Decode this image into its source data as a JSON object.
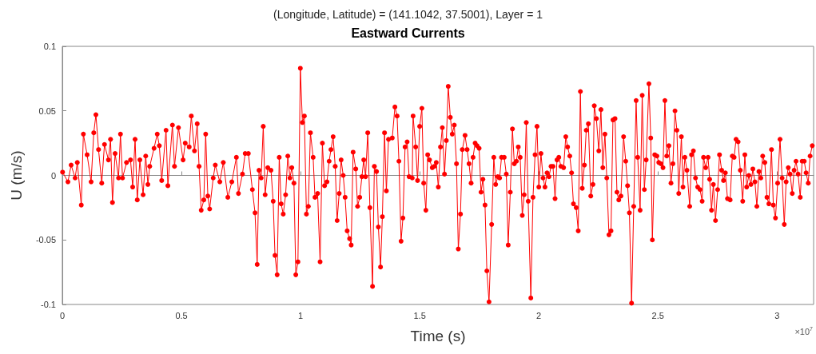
{
  "chart_data": {
    "type": "line",
    "subtitle": "(Longitude, Latitude) = (141.1042, 37.5001), Layer = 1",
    "title": "Eastward Currents",
    "xlabel": "Time (s)",
    "ylabel": "U (m/s)",
    "annotations": [
      "×10$^{7}$"
    ],
    "marker": "circle",
    "line_style": "solid",
    "xlim": [
      0,
      3.1536
    ],
    "xticks": [
      0,
      0.5,
      1,
      1.5,
      2,
      2.5,
      3
    ],
    "ylim": [
      -0.1,
      0.1
    ],
    "yticks": [
      -0.1,
      -0.05,
      0,
      0.05,
      0.1
    ],
    "x": [
      0.001,
      0.0235,
      0.0369,
      0.0537,
      0.0628,
      0.0795,
      0.0883,
      0.104,
      0.1208,
      0.1319,
      0.141,
      0.152,
      0.1654,
      0.1769,
      0.1936,
      0.2024,
      0.2104,
      0.2215,
      0.2359,
      0.244,
      0.2527,
      0.2695,
      0.2863,
      0.2953,
      0.3054,
      0.3145,
      0.3255,
      0.339,
      0.35,
      0.3591,
      0.3668,
      0.3849,
      0.3984,
      0.4071,
      0.4171,
      0.4353,
      0.443,
      0.4621,
      0.4708,
      0.4876,
      0.5068,
      0.5158,
      0.5326,
      0.5413,
      0.5547,
      0.5662,
      0.5739,
      0.5829,
      0.594,
      0.6017,
      0.6108,
      0.6185,
      0.6333,
      0.642,
      0.6611,
      0.6756,
      0.6947,
      0.7115,
      0.7306,
      0.7393,
      0.7561,
      0.7675,
      0.7809,
      0.7977,
      0.8088,
      0.8179,
      0.8256,
      0.8346,
      0.8434,
      0.8514,
      0.8625,
      0.8759,
      0.885,
      0.8927,
      0.9017,
      0.9105,
      0.9185,
      0.9273,
      0.9373,
      0.9464,
      0.9554,
      0.9632,
      0.9722,
      0.98,
      0.989,
      0.9991,
      1.0078,
      1.0159,
      1.0246,
      1.0326,
      1.0414,
      1.0528,
      1.0605,
      1.0716,
      1.082,
      1.0917,
      1.1008,
      1.1108,
      1.1199,
      1.1276,
      1.1367,
      1.1454,
      1.1535,
      1.1622,
      1.1702,
      1.179,
      1.187,
      1.1957,
      1.2058,
      1.2125,
      1.2206,
      1.2317,
      1.2394,
      1.2484,
      1.2575,
      1.2652,
      1.2729,
      1.282,
      1.2911,
      1.3021,
      1.3098,
      1.3189,
      1.3266,
      1.3357,
      1.3434,
      1.3525,
      1.3602,
      1.3692,
      1.385,
      1.3961,
      1.4052,
      1.4129,
      1.4219,
      1.4297,
      1.4387,
      1.4474,
      1.4555,
      1.4689,
      1.4723,
      1.4833,
      1.4911,
      1.5001,
      1.5092,
      1.5169,
      1.526,
      1.5337,
      1.5414,
      1.5528,
      1.5616,
      1.5696,
      1.5783,
      1.5874,
      1.5951,
      1.6042,
      1.6119,
      1.6199,
      1.6287,
      1.6367,
      1.6454,
      1.6545,
      1.6622,
      1.6713,
      1.679,
      1.6904,
      1.6991,
      1.7072,
      1.7159,
      1.724,
      1.7327,
      1.7408,
      1.7495,
      1.7575,
      1.7653,
      1.7743,
      1.782,
      1.7911,
      1.8022,
      1.8112,
      1.819,
      1.828,
      1.8357,
      1.8435,
      1.8549,
      1.8636,
      1.8716,
      1.8804,
      1.8894,
      1.8972,
      1.9062,
      1.9139,
      1.922,
      1.9307,
      1.9388,
      1.9475,
      1.9555,
      1.9666,
      1.9757,
      1.9844,
      1.9925,
      2.0002,
      2.0092,
      2.018,
      2.026,
      2.0347,
      2.0428,
      2.0515,
      2.0596,
      2.0683,
      2.0764,
      2.0841,
      2.0931,
      2.1042,
      2.1133,
      2.121,
      2.1301,
      2.1378,
      2.1455,
      2.1569,
      2.1656,
      2.1747,
      2.1824,
      2.1915,
      2.1992,
      2.2082,
      2.2183,
      2.2274,
      2.2328,
      2.2418,
      2.2519,
      2.2609,
      2.2687,
      2.2777,
      2.2854,
      2.2945,
      2.3032,
      2.3113,
      2.32,
      2.3281,
      2.3358,
      2.3448,
      2.3559,
      2.365,
      2.3727,
      2.3804,
      2.3895,
      2.3985,
      2.4086,
      2.4153,
      2.4254,
      2.4341,
      2.4432,
      2.4509,
      2.4623,
      2.47,
      2.4767,
      2.4868,
      2.4959,
      2.5036,
      2.5126,
      2.5214,
      2.5294,
      2.5371,
      2.5462,
      2.5549,
      2.563,
      2.5717,
      2.5798,
      2.5875,
      2.5986,
      2.6053,
      2.6133,
      2.622,
      2.6335,
      2.6412,
      2.6489,
      2.658,
      2.667,
      2.6771,
      2.6858,
      2.6915,
      2.7006,
      2.7106,
      2.7173,
      2.7251,
      2.7328,
      2.7418,
      2.7509,
      2.7586,
      2.7677,
      2.7754,
      2.7831,
      2.7922,
      2.8033,
      2.8123,
      2.82,
      2.8281,
      2.8368,
      2.8459,
      2.856,
      2.865,
      2.8727,
      2.8818,
      2.8905,
      2.8986,
      2.9073,
      2.9154,
      2.9241,
      2.9321,
      2.9399,
      2.9489,
      2.9577,
      2.9657,
      2.9768,
      2.9845,
      2.9936,
      3.0026,
      3.0127,
      3.0214,
      3.0305,
      3.0382,
      3.0472,
      3.055,
      3.064,
      3.0718,
      3.0798,
      3.0885,
      3.0976,
      3.1053,
      3.1144,
      3.1221,
      3.1311,
      3.1389,
      3.1479
    ],
    "series": [
      {
        "color": "#ff0000",
        "values": [
          0.0025,
          -0.005,
          0.008,
          -0.002,
          0.01,
          -0.023,
          0.032,
          0.016,
          -0.005,
          0.033,
          0.047,
          0.02,
          -0.006,
          0.024,
          0.012,
          0.028,
          -0.021,
          0.017,
          -0.002,
          0.032,
          -0.002,
          0.01,
          0.012,
          -0.009,
          0.028,
          -0.019,
          0.012,
          -0.015,
          0.015,
          -0.007,
          0.007,
          0.021,
          0.032,
          0.023,
          -0.004,
          0.035,
          -0.008,
          0.039,
          0.007,
          0.037,
          0.012,
          0.025,
          0.022,
          0.046,
          0.019,
          0.04,
          0.007,
          -0.027,
          -0.019,
          0.032,
          -0.016,
          -0.026,
          -0.002,
          0.008,
          -0.005,
          0.01,
          -0.017,
          -0.005,
          0.014,
          -0.014,
          0.001,
          0.017,
          0.017,
          -0.011,
          -0.029,
          -0.069,
          0.004,
          -0.002,
          0.038,
          -0.015,
          0.006,
          0.004,
          -0.02,
          -0.062,
          -0.077,
          0.014,
          -0.022,
          -0.03,
          -0.015,
          0.015,
          -0.002,
          0.006,
          -0.006,
          -0.077,
          -0.067,
          0.083,
          0.041,
          0.046,
          -0.03,
          -0.024,
          0.033,
          0.014,
          -0.017,
          -0.014,
          -0.067,
          0.025,
          -0.008,
          -0.005,
          0.011,
          0.02,
          0.03,
          0.007,
          -0.035,
          -0.014,
          0.012,
          0,
          -0.017,
          -0.043,
          -0.049,
          -0.054,
          0.018,
          0.005,
          -0.024,
          -0.017,
          -0.001,
          0.012,
          -0.001,
          0.033,
          -0.025,
          -0.086,
          0.007,
          0.003,
          -0.04,
          -0.071,
          -0.032,
          0.033,
          -0.012,
          0.028,
          0.029,
          0.053,
          0.046,
          0.011,
          -0.051,
          -0.033,
          0.022,
          0.026,
          -0.001,
          -0.002,
          0.046,
          0.022,
          -0.004,
          0.038,
          0.052,
          -0.006,
          -0.027,
          0.016,
          0.012,
          0.006,
          0.007,
          0.01,
          -0.009,
          0.022,
          0.037,
          0.001,
          0.027,
          0.069,
          0.045,
          0.032,
          0.039,
          0.009,
          -0.057,
          -0.03,
          0.02,
          0.031,
          0.02,
          0.009,
          -0.006,
          0.014,
          0.025,
          0.023,
          0.021,
          -0.013,
          -0.003,
          -0.023,
          -0.074,
          -0.098,
          -0.038,
          0.014,
          -0.007,
          -0.001,
          -0.002,
          0.014,
          0.014,
          0.001,
          -0.054,
          -0.013,
          0.036,
          0.009,
          0.011,
          0.022,
          0.014,
          -0.031,
          -0.015,
          0.041,
          -0.02,
          -0.095,
          -0.017,
          0.016,
          0.038,
          -0.009,
          0.017,
          -0.002,
          -0.009,
          0.002,
          -0.001,
          0.007,
          0.007,
          -0.018,
          0.012,
          0.014,
          0.007,
          0.006,
          0.03,
          0.022,
          0.015,
          0.002,
          -0.022,
          -0.025,
          -0.043,
          0.065,
          -0.01,
          0.008,
          0.035,
          0.04,
          -0.016,
          -0.007,
          0.054,
          0.044,
          0.019,
          0.051,
          0.006,
          0.032,
          -0.002,
          -0.046,
          -0.043,
          0.043,
          0.044,
          -0.013,
          -0.019,
          -0.016,
          0.03,
          0.011,
          -0.008,
          -0.029,
          -0.099,
          -0.024,
          0.058,
          0.014,
          -0.027,
          0.062,
          -0.011,
          0.012,
          0.071,
          0.029,
          -0.05,
          0.016,
          0.015,
          0.01,
          0.009,
          0.006,
          0.058,
          0.015,
          0.023,
          -0.006,
          0.009,
          0.05,
          0.035,
          -0.014,
          0.03,
          -0.009,
          0.014,
          0.004,
          -0.024,
          0.016,
          0.019,
          -0.002,
          -0.009,
          -0.011,
          -0.02,
          0.014,
          0.006,
          0.014,
          -0.003,
          -0.027,
          -0.007,
          -0.035,
          -0.011,
          0.016,
          0.004,
          -0.004,
          0.002,
          -0.018,
          -0.019,
          0.015,
          0.014,
          0.028,
          0.026,
          0.004,
          -0.02,
          0.016,
          -0.009,
          0,
          -0.007,
          0.005,
          -0.005,
          -0.024,
          0.003,
          -0.002,
          0.015,
          0.01,
          -0.017,
          -0.022,
          0.02,
          -0.023,
          -0.033,
          -0.006,
          0.028,
          -0.002,
          -0.038,
          -0.005,
          0.006,
          0.001,
          -0.014,
          0.004,
          0.011,
          0.001,
          -0.017,
          0.011,
          0.011,
          0.002,
          -0.006,
          0.015,
          0.023
        ]
      }
    ]
  }
}
